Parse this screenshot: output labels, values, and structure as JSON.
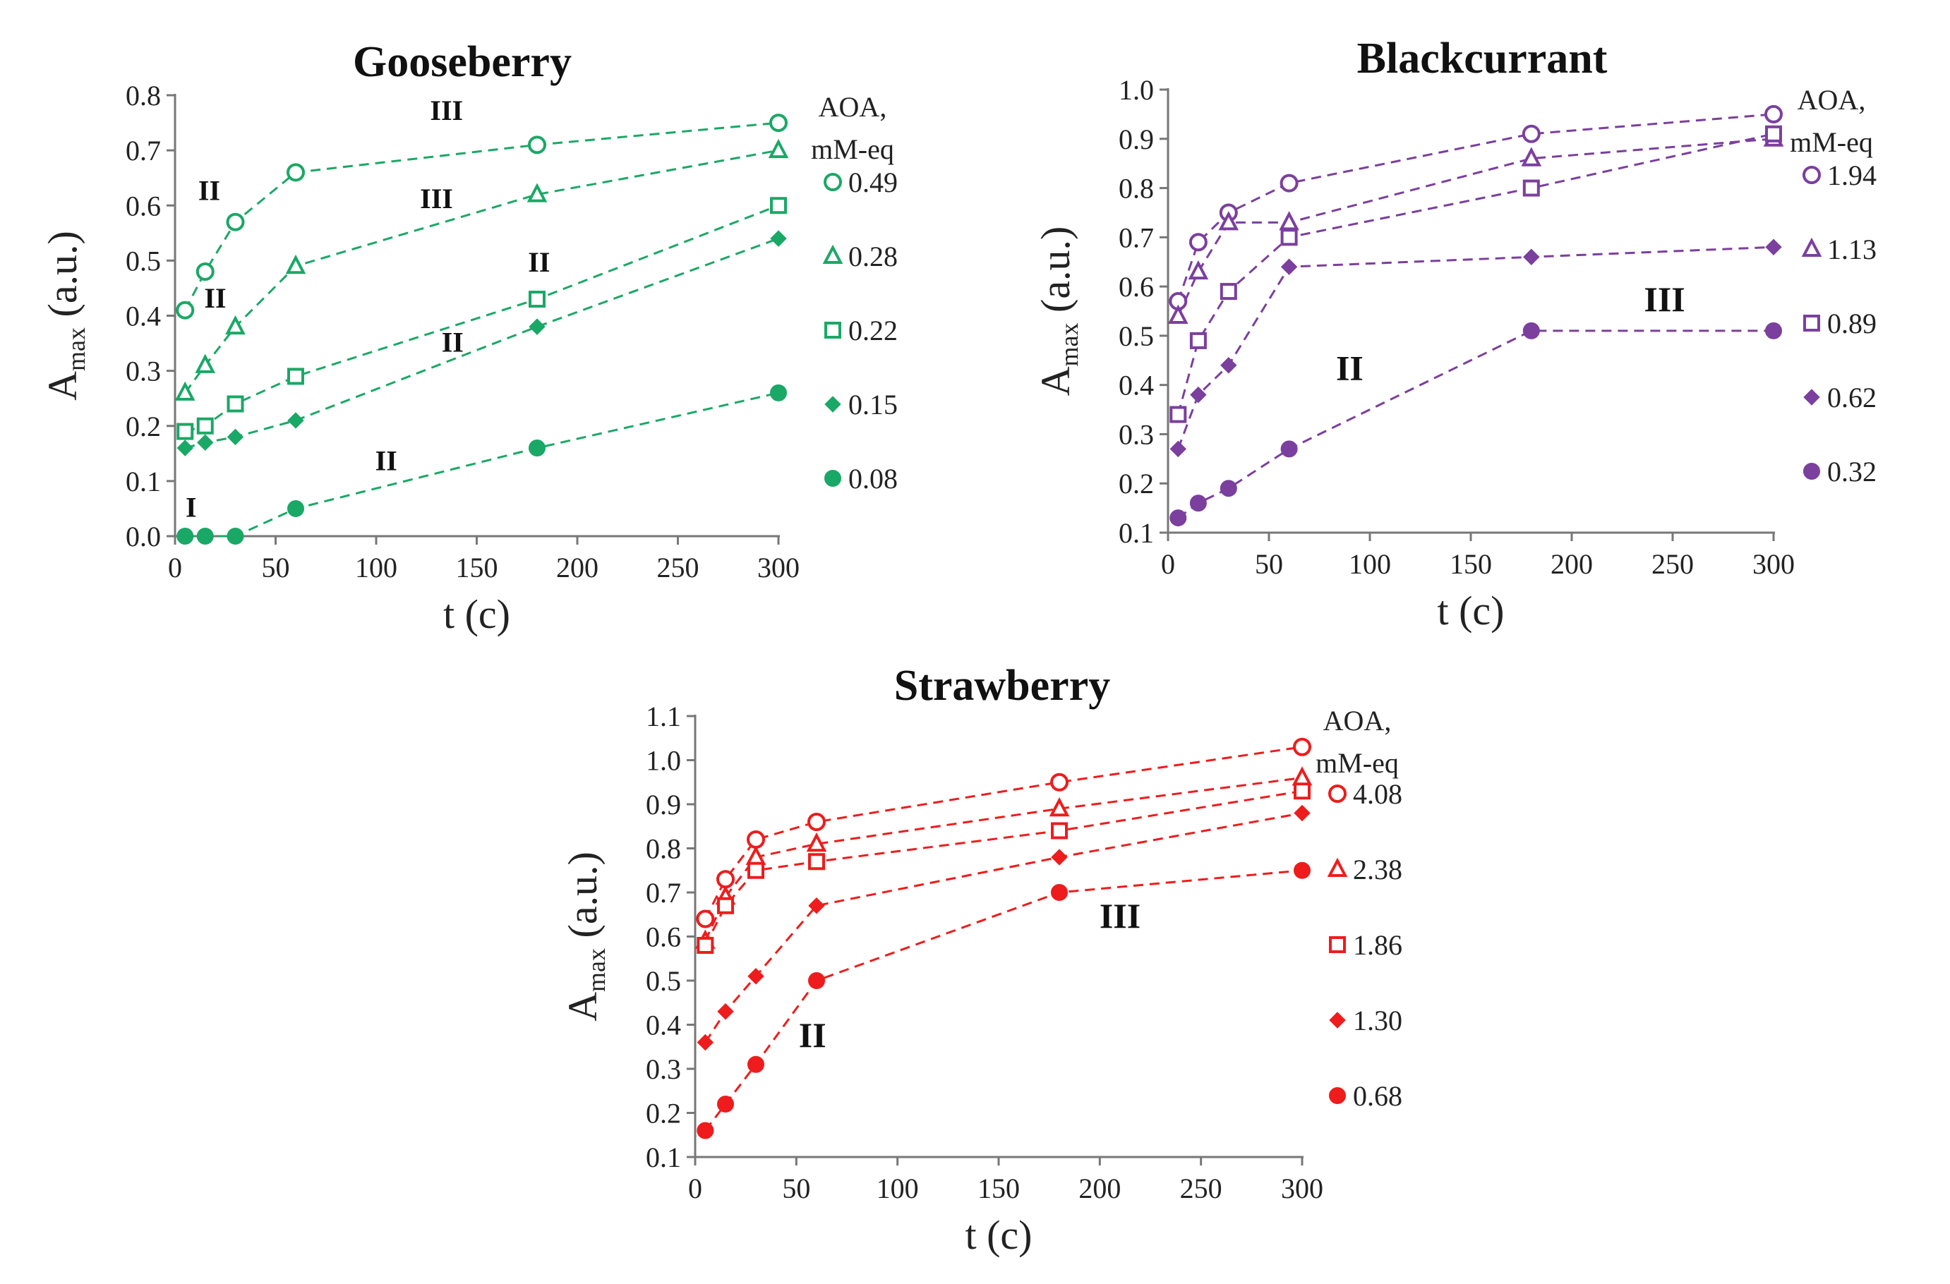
{
  "chart_data": [
    {
      "type": "scatter",
      "title": "Gooseberry",
      "xlabel": "t (c)",
      "ylabel": "A",
      "ylabel_sub": "max",
      "ylabel_unit": " (a.u.)",
      "xlim": [
        0,
        300
      ],
      "ylim": [
        0.0,
        0.8
      ],
      "xticks": [
        "0",
        "50",
        "100",
        "150",
        "200",
        "250",
        "300"
      ],
      "yticks": [
        "0.0",
        "0.1",
        "0.2",
        "0.3",
        "0.4",
        "0.5",
        "0.6",
        "0.7",
        "0.8"
      ],
      "color": "#1aa866",
      "legend_title": [
        "AOA,",
        "mM-eq"
      ],
      "x": [
        5,
        15,
        30,
        60,
        180,
        300
      ],
      "series": [
        {
          "name": "0.49",
          "marker": "circle-open",
          "values": [
            0.41,
            0.48,
            0.57,
            0.66,
            0.71,
            0.75
          ]
        },
        {
          "name": "0.28",
          "marker": "triangle-open",
          "values": [
            0.26,
            0.31,
            0.38,
            0.49,
            0.62,
            0.7
          ]
        },
        {
          "name": "0.22",
          "marker": "square-open",
          "values": [
            0.19,
            0.2,
            0.24,
            0.29,
            0.43,
            0.6
          ]
        },
        {
          "name": "0.15",
          "marker": "diamond-filled",
          "values": [
            0.16,
            0.17,
            0.18,
            0.21,
            0.38,
            0.54
          ]
        },
        {
          "name": "0.08",
          "marker": "circle-filled",
          "values": [
            0.0,
            0.0,
            0.0,
            0.05,
            0.16,
            0.26
          ]
        }
      ],
      "annotations": [
        {
          "text": "III",
          "x": 135,
          "y": 0.755
        },
        {
          "text": "II",
          "x": 17,
          "y": 0.61
        },
        {
          "text": "III",
          "x": 130,
          "y": 0.595
        },
        {
          "text": "II",
          "x": 20,
          "y": 0.415
        },
        {
          "text": "II",
          "x": 181,
          "y": 0.48
        },
        {
          "text": "II",
          "x": 138,
          "y": 0.335
        },
        {
          "text": "II",
          "x": 105,
          "y": 0.12
        },
        {
          "text": "I",
          "x": 8,
          "y": 0.035
        }
      ]
    },
    {
      "type": "scatter",
      "title": "Blackcurrant",
      "xlabel": "t (c)",
      "ylabel": "A",
      "ylabel_sub": "max",
      "ylabel_unit": " (a.u.)",
      "xlim": [
        0,
        300
      ],
      "ylim": [
        0.1,
        1.0
      ],
      "xticks": [
        "0",
        "50",
        "100",
        "150",
        "200",
        "250",
        "300"
      ],
      "yticks": [
        "0.1",
        "0.2",
        "0.3",
        "0.4",
        "0.5",
        "0.6",
        "0.7",
        "0.8",
        "0.9",
        "1.0"
      ],
      "color": "#7b3f9e",
      "legend_title": [
        "AOA,",
        "mM-eq"
      ],
      "x": [
        5,
        15,
        30,
        60,
        180,
        300
      ],
      "series": [
        {
          "name": "1.94",
          "marker": "circle-open",
          "values": [
            0.57,
            0.69,
            0.75,
            0.81,
            0.91,
            0.95
          ]
        },
        {
          "name": "1.13",
          "marker": "triangle-open",
          "values": [
            0.54,
            0.63,
            0.73,
            0.73,
            0.86,
            0.9
          ]
        },
        {
          "name": "0.89",
          "marker": "square-open",
          "values": [
            0.34,
            0.49,
            0.59,
            0.7,
            0.8,
            0.91
          ]
        },
        {
          "name": "0.62",
          "marker": "diamond-filled",
          "values": [
            0.27,
            0.38,
            0.44,
            0.64,
            0.66,
            0.68
          ]
        },
        {
          "name": "0.32",
          "marker": "circle-filled",
          "values": [
            0.13,
            0.16,
            0.19,
            0.27,
            0.51,
            0.51
          ]
        }
      ],
      "annotations": [
        {
          "text": "II",
          "x": 90,
          "y": 0.41
        },
        {
          "text": "III",
          "x": 246,
          "y": 0.55
        }
      ]
    },
    {
      "type": "scatter",
      "title": "Strawberry",
      "xlabel": "t (c)",
      "ylabel": "A",
      "ylabel_sub": "max",
      "ylabel_unit": " (a.u.)",
      "xlim": [
        0,
        300
      ],
      "ylim": [
        0.1,
        1.1
      ],
      "xticks": [
        "0",
        "50",
        "100",
        "150",
        "200",
        "250",
        "300"
      ],
      "yticks": [
        "0.1",
        "0.2",
        "0.3",
        "0.4",
        "0.5",
        "0.6",
        "0.7",
        "0.8",
        "0.9",
        "1.0",
        "1.1"
      ],
      "color": "#ee1c1c",
      "legend_title": [
        "AOA,",
        "mM-eq"
      ],
      "x": [
        5,
        15,
        30,
        60,
        180,
        300
      ],
      "series": [
        {
          "name": "4.08",
          "marker": "circle-open",
          "values": [
            0.64,
            0.73,
            0.82,
            0.86,
            0.95,
            1.03
          ]
        },
        {
          "name": "2.38",
          "marker": "triangle-open",
          "values": [
            0.59,
            0.69,
            0.78,
            0.81,
            0.89,
            0.96
          ]
        },
        {
          "name": "1.86",
          "marker": "square-open",
          "values": [
            0.58,
            0.67,
            0.75,
            0.77,
            0.84,
            0.93
          ]
        },
        {
          "name": "1.30",
          "marker": "diamond-filled",
          "values": [
            0.36,
            0.43,
            0.51,
            0.67,
            0.78,
            0.88
          ]
        },
        {
          "name": "0.68",
          "marker": "circle-filled",
          "values": [
            0.16,
            0.22,
            0.31,
            0.5,
            0.7,
            0.75
          ]
        }
      ],
      "annotations": [
        {
          "text": "II",
          "x": 58,
          "y": 0.35
        },
        {
          "text": "III",
          "x": 210,
          "y": 0.62
        }
      ]
    }
  ]
}
